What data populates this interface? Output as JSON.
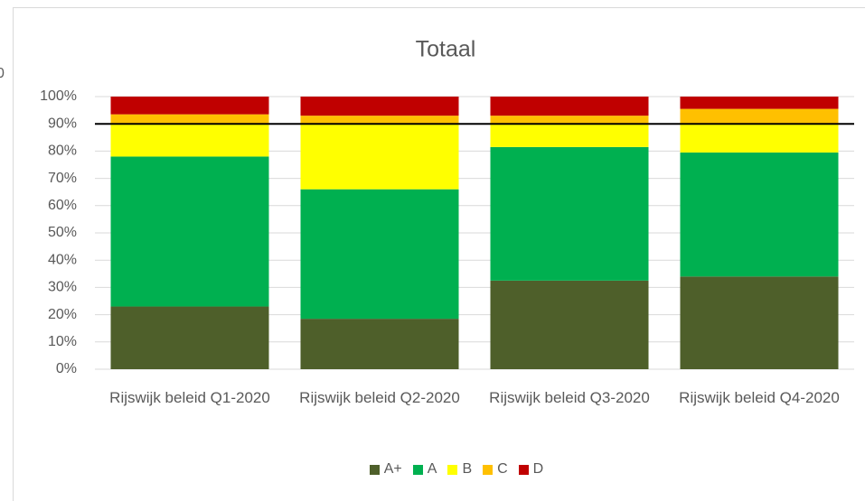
{
  "chart_data": {
    "type": "stacked_bar",
    "title": "Totaal",
    "side_label": "0",
    "categories": [
      "Rijswijk beleid Q1-2020",
      "Rijswijk beleid Q2-2020",
      "Rijswijk beleid Q3-2020",
      "Rijswijk beleid Q4-2020"
    ],
    "series": [
      {
        "name": "A+",
        "color": "#4e5f2a",
        "values": [
          23,
          18.5,
          32.5,
          34
        ]
      },
      {
        "name": "A",
        "color": "#00b050",
        "values": [
          55,
          47.5,
          49,
          45.5
        ]
      },
      {
        "name": "B",
        "color": "#ffff00",
        "values": [
          12,
          24,
          8.5,
          10.5
        ]
      },
      {
        "name": "C",
        "color": "#ffc000",
        "values": [
          3.5,
          3,
          3,
          5.5
        ]
      },
      {
        "name": "D",
        "color": "#c00000",
        "values": [
          6.5,
          7,
          7,
          4.5
        ]
      }
    ],
    "reference_line": 90,
    "ylim": [
      0,
      100
    ],
    "yticks": [
      {
        "value": 0,
        "label": "0%"
      },
      {
        "value": 10,
        "label": "10%"
      },
      {
        "value": 20,
        "label": "20%"
      },
      {
        "value": 30,
        "label": "30%"
      },
      {
        "value": 40,
        "label": "40%"
      },
      {
        "value": 50,
        "label": "50%"
      },
      {
        "value": 60,
        "label": "60%"
      },
      {
        "value": 70,
        "label": "70%"
      },
      {
        "value": 80,
        "label": "80%"
      },
      {
        "value": 90,
        "label": "90%"
      },
      {
        "value": 100,
        "label": "100%"
      }
    ],
    "grid": true,
    "legend": "bottom"
  }
}
